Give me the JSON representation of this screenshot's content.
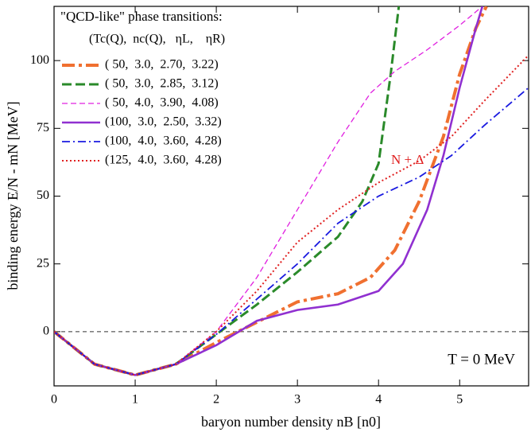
{
  "chart_data": {
    "type": "line",
    "legend_title": "\"QCD-like\" phase transitions:",
    "legend_header": "(Tc(Q),  nc(Q),   ηL,    ηR)",
    "xlabel": "baryon number density nB [n0]",
    "ylabel": "binding energy E/N - mN [MeV]",
    "annotations": [
      "N + Δ",
      "T = 0 MeV"
    ],
    "xlim": [
      0,
      5.85
    ],
    "ylim": [
      -20,
      120
    ],
    "xticks": [
      0,
      1,
      2,
      3,
      4,
      5
    ],
    "yticks": [
      0,
      25,
      50,
      75,
      100
    ],
    "hline": 0,
    "series": [
      {
        "name": "( 50,  3.0,  2.70,  3.22)",
        "color": "#f07030",
        "style": "dashdot-thick",
        "x": [
          0,
          0.5,
          1,
          1.5,
          2,
          2.4,
          2.8,
          3,
          3.5,
          3.9,
          4.2,
          4.5,
          4.8,
          5,
          5.2,
          5.33
        ],
        "values": [
          0,
          -12,
          -16,
          -12,
          -4,
          2,
          8,
          11,
          14,
          20,
          30,
          48,
          72,
          95,
          112,
          120
        ]
      },
      {
        "name": "( 50,  3.0,  2.85,  3.12)",
        "color": "#2a8a2a",
        "style": "dashed",
        "x": [
          0,
          0.5,
          1,
          1.5,
          2,
          2.5,
          3,
          3.5,
          3.8,
          4,
          4.15,
          4.25
        ],
        "values": [
          0,
          -12,
          -16,
          -12,
          -1,
          10,
          22,
          35,
          48,
          62,
          95,
          120
        ]
      },
      {
        "name": "( 50,  4.0,  3.90,  4.08)",
        "color": "#e020e0",
        "style": "dashed-thin",
        "x": [
          0,
          0.5,
          1,
          1.5,
          2,
          2.5,
          3,
          3.5,
          3.9,
          4.2,
          4.6,
          5,
          5.28
        ],
        "values": [
          0,
          -12,
          -16,
          -12,
          0,
          20,
          45,
          70,
          88,
          96,
          104,
          113,
          120
        ]
      },
      {
        "name": "(100,  3.0,  2.50,  3.32)",
        "color": "#9030d0",
        "style": "solid",
        "x": [
          0,
          0.5,
          1,
          1.5,
          2,
          2.5,
          3,
          3.5,
          4,
          4.3,
          4.6,
          4.8,
          5,
          5.2,
          5.28
        ],
        "values": [
          0,
          -12,
          -16,
          -12,
          -5,
          4,
          8,
          10,
          15,
          25,
          45,
          65,
          90,
          112,
          120
        ]
      },
      {
        "name": "(100,  4.0,  3.60,  4.28)",
        "color": "#1a1ae0",
        "style": "dashdot",
        "x": [
          0,
          0.5,
          1,
          1.5,
          2,
          2.5,
          3,
          3.5,
          4,
          4.5,
          4.9,
          5.3,
          5.85
        ],
        "values": [
          0,
          -12,
          -16,
          -12,
          -1,
          12,
          25,
          40,
          50,
          57,
          65,
          76,
          90
        ]
      },
      {
        "name": "(125,  4.0,  3.60,  4.28)",
        "color": "#e02020",
        "style": "dotted",
        "x": [
          0,
          0.5,
          1,
          1.5,
          2,
          2.5,
          3,
          3.5,
          4,
          4.5,
          4.9,
          5.3,
          5.85
        ],
        "values": [
          0,
          -12,
          -16,
          -12,
          0,
          15,
          33,
          45,
          55,
          63,
          72,
          85,
          102
        ]
      }
    ]
  }
}
